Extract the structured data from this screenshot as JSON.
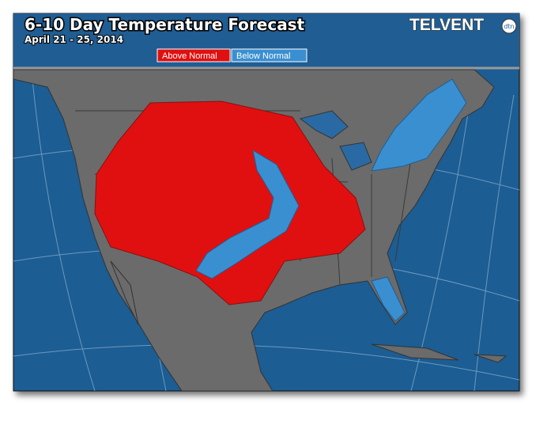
{
  "header": {
    "title": "6-10 Day Temperature Forecast",
    "subtitle": "April 21 - 25, 2014"
  },
  "legend": [
    {
      "label": "Above Normal"
    },
    {
      "label": "Below Normal"
    }
  ],
  "logo": {
    "text": "TELVENT",
    "badge": "dtn"
  }
}
